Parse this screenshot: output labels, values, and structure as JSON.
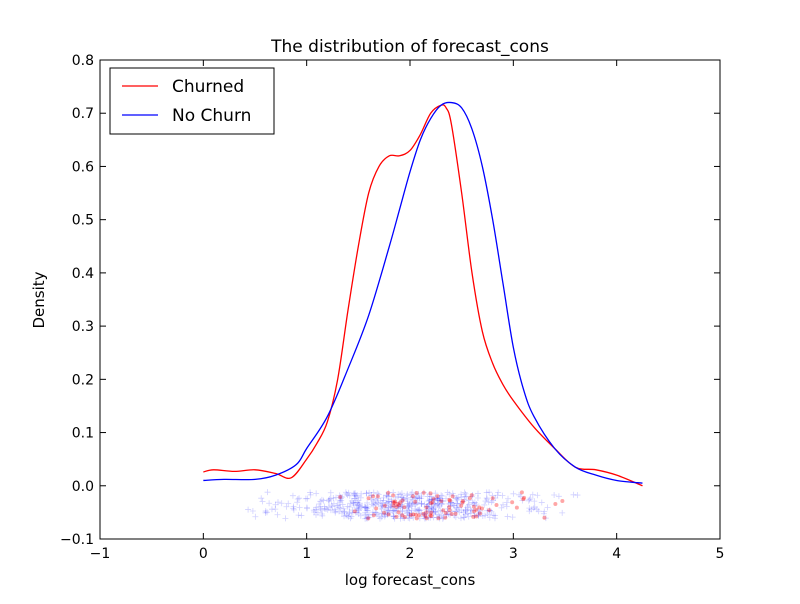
{
  "chart_data": {
    "type": "line",
    "title": "The distribution of forecast_cons",
    "xlabel": "log forecast_cons",
    "ylabel": "Density",
    "xlim": [
      -1,
      5
    ],
    "ylim": [
      -0.1,
      0.8
    ],
    "xticks": [
      "−1",
      "0",
      "1",
      "2",
      "3",
      "4",
      "5"
    ],
    "yticks": [
      "−0.1",
      "0.0",
      "0.1",
      "0.2",
      "0.3",
      "0.4",
      "0.5",
      "0.6",
      "0.7",
      "0.8"
    ],
    "legend_position": "top-left",
    "grid": false,
    "series": [
      {
        "name": "Churned",
        "color": "#ff0000",
        "x": [
          0.0,
          0.1,
          0.3,
          0.5,
          0.7,
          0.85,
          1.0,
          1.1,
          1.2,
          1.3,
          1.4,
          1.5,
          1.6,
          1.7,
          1.8,
          1.9,
          2.0,
          2.1,
          2.2,
          2.3,
          2.35,
          2.4,
          2.5,
          2.6,
          2.7,
          2.8,
          2.9,
          3.0,
          3.2,
          3.4,
          3.6,
          3.8,
          4.0,
          4.25
        ],
        "y": [
          0.026,
          0.03,
          0.027,
          0.03,
          0.023,
          0.015,
          0.05,
          0.08,
          0.12,
          0.2,
          0.33,
          0.45,
          0.55,
          0.6,
          0.62,
          0.62,
          0.63,
          0.66,
          0.7,
          0.715,
          0.71,
          0.68,
          0.55,
          0.4,
          0.29,
          0.23,
          0.19,
          0.16,
          0.11,
          0.07,
          0.035,
          0.03,
          0.02,
          0.0
        ]
      },
      {
        "name": "No Churn",
        "color": "#0000ff",
        "x": [
          0.0,
          0.2,
          0.5,
          0.7,
          0.9,
          1.0,
          1.2,
          1.4,
          1.6,
          1.8,
          1.9,
          2.0,
          2.1,
          2.2,
          2.3,
          2.4,
          2.5,
          2.6,
          2.7,
          2.8,
          2.9,
          3.0,
          3.1,
          3.2,
          3.4,
          3.6,
          3.8,
          4.0,
          4.25
        ],
        "y": [
          0.01,
          0.012,
          0.012,
          0.02,
          0.04,
          0.07,
          0.13,
          0.22,
          0.32,
          0.45,
          0.52,
          0.59,
          0.65,
          0.69,
          0.715,
          0.72,
          0.71,
          0.67,
          0.6,
          0.5,
          0.38,
          0.26,
          0.18,
          0.13,
          0.07,
          0.035,
          0.02,
          0.01,
          0.005
        ]
      }
    ]
  }
}
